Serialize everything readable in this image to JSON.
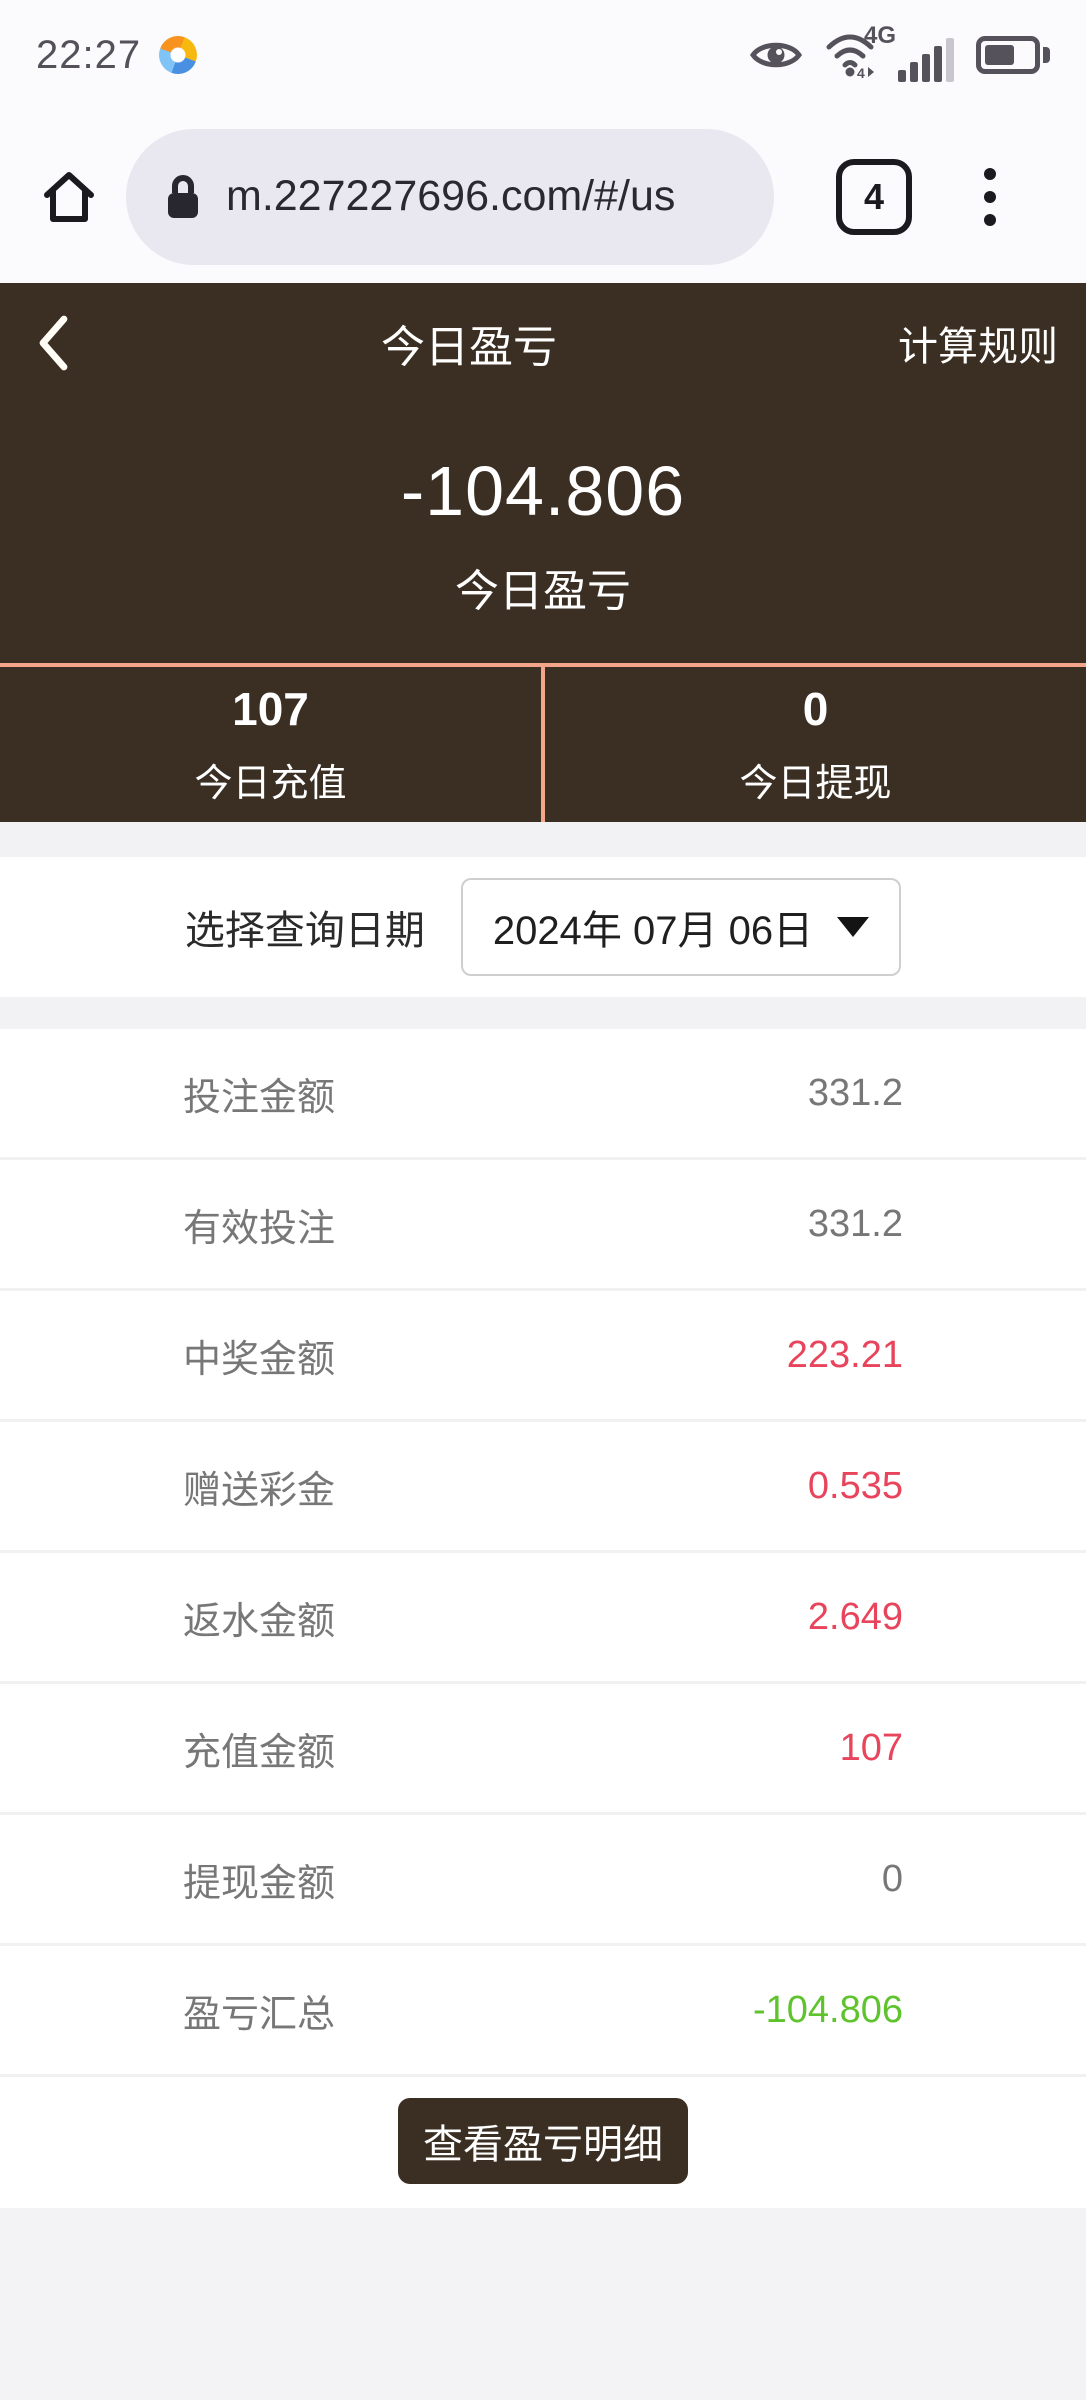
{
  "status_bar": {
    "time": "22:27",
    "network": "4G"
  },
  "browser": {
    "url": "m.227227696.com/#/us",
    "tab_count": "4"
  },
  "header": {
    "title": "今日盈亏",
    "rules": "计算规则",
    "amount": "-104.806",
    "amount_label": "今日盈亏"
  },
  "today_stats": [
    {
      "value": "107",
      "label": "今日充值"
    },
    {
      "value": "0",
      "label": "今日提现"
    }
  ],
  "date_picker": {
    "label": "选择查询日期",
    "value": "2024年 07月 06日"
  },
  "summary_rows": [
    {
      "label": "投注金额",
      "value": "331.2",
      "tone": "neutral"
    },
    {
      "label": "有效投注",
      "value": "331.2",
      "tone": "neutral"
    },
    {
      "label": "中奖金额",
      "value": "223.21",
      "tone": "red"
    },
    {
      "label": "赠送彩金",
      "value": "0.535",
      "tone": "red"
    },
    {
      "label": "返水金额",
      "value": "2.649",
      "tone": "red"
    },
    {
      "label": "充值金额",
      "value": "107",
      "tone": "red"
    },
    {
      "label": "提现金额",
      "value": "0",
      "tone": "neutral"
    },
    {
      "label": "盈亏汇总",
      "value": "-104.806",
      "tone": "green"
    }
  ],
  "actions": {
    "view_detail": "查看盈亏明细"
  },
  "colors": {
    "brand_brown": "#3a2f22",
    "salmon_divider": "#f4a58a",
    "win_red": "#e8445c",
    "loss_green": "#5fc32d"
  }
}
